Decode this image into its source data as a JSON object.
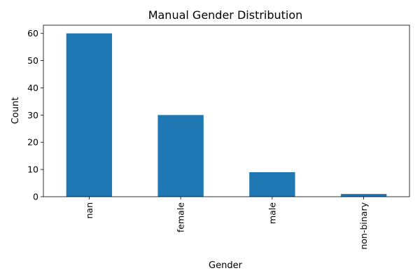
{
  "chart_data": {
    "type": "bar",
    "title": "Manual Gender Distribution",
    "xlabel": "Gender",
    "ylabel": "Count",
    "categories": [
      "nan",
      "female",
      "male",
      "non-binary"
    ],
    "values": [
      60,
      30,
      9,
      1
    ],
    "ylim": [
      0,
      63
    ],
    "yticks": [
      0,
      10,
      20,
      30,
      40,
      50,
      60
    ],
    "xtick_rotation": "vertical",
    "grid": false,
    "legend": "none",
    "colors": {
      "bar": "#1f77b4",
      "axes": "#000000",
      "background": "#ffffff"
    }
  }
}
